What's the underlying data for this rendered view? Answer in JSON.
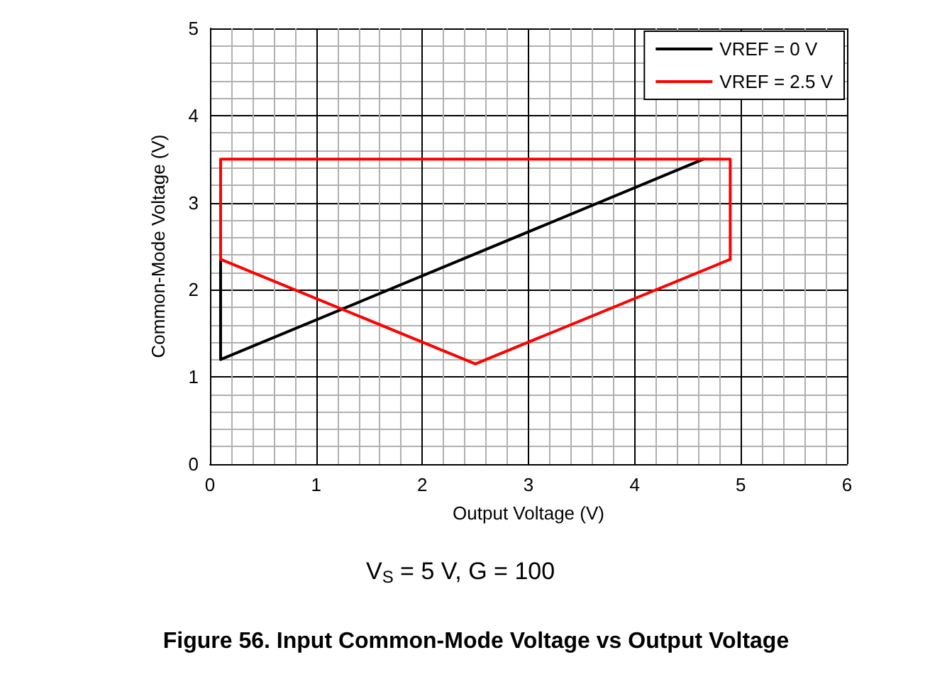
{
  "chart_data": {
    "type": "line",
    "title": "Figure 56. Input Common-Mode Voltage vs Output Voltage",
    "xlabel": "Output Voltage (V)",
    "ylabel": "Common-Mode Voltage (V)",
    "annotations": [
      "V$_{S}$ = 5 V, G = 100"
    ],
    "series": [
      {
        "name": "VREF = 0 V",
        "color": "#000000",
        "x": [
          0.1,
          0.1,
          4.65
        ],
        "values": [
          2.35,
          1.2,
          3.5
        ]
      },
      {
        "name": "VREF = 2.5 V",
        "color": "#ff0000",
        "x": [
          0.1,
          0.1,
          4.9,
          4.9
        ],
        "values": [
          2.35,
          3.5,
          3.5,
          2.35
        ]
      },
      {
        "color": "#ff0000",
        "x": [
          0.1,
          2.5,
          4.9
        ],
        "values": [
          2.35,
          1.15,
          2.35
        ]
      }
    ],
    "xlim": [
      0,
      6
    ],
    "xticks": [
      0,
      1,
      2,
      3,
      4,
      5,
      6
    ],
    "ylim": [
      0,
      5
    ],
    "yticks": [
      0,
      1,
      2,
      3,
      4,
      5
    ],
    "grid": true,
    "legend": "top right",
    "marker": "none",
    "line_style": "solid"
  }
}
